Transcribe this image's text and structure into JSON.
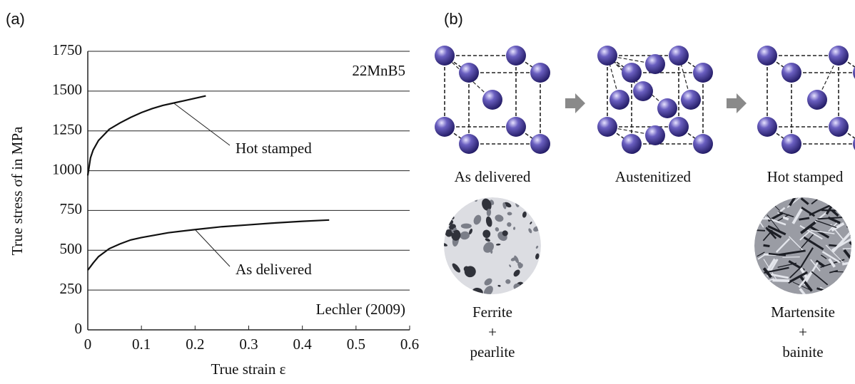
{
  "panels": {
    "a": "(a)",
    "b": "(b)"
  },
  "chart_data": {
    "type": "line",
    "xlabel": "True strain ε",
    "ylabel": "True stress σf in MPa",
    "annotations": [
      "22MnB5",
      "Lechler (2009)"
    ],
    "xlim": [
      0,
      0.6
    ],
    "xticks": [
      0,
      0.1,
      0.2,
      0.3,
      0.4,
      0.5,
      0.6
    ],
    "ylim": [
      0,
      1750
    ],
    "yticks": [
      0,
      250,
      500,
      750,
      1000,
      1250,
      1500,
      1750
    ],
    "grid": true,
    "series": [
      {
        "name": "Hot stamped",
        "color": "#111111",
        "x": [
          0,
          0.005,
          0.01,
          0.02,
          0.04,
          0.06,
          0.08,
          0.1,
          0.12,
          0.14,
          0.16,
          0.18,
          0.2,
          0.22
        ],
        "values": [
          970,
          1080,
          1130,
          1190,
          1260,
          1300,
          1335,
          1365,
          1390,
          1410,
          1425,
          1440,
          1455,
          1470
        ]
      },
      {
        "name": "As delivered",
        "color": "#111111",
        "x": [
          0,
          0.01,
          0.02,
          0.04,
          0.06,
          0.08,
          0.1,
          0.15,
          0.2,
          0.25,
          0.3,
          0.35,
          0.4,
          0.45
        ],
        "values": [
          375,
          420,
          460,
          510,
          540,
          565,
          580,
          610,
          630,
          648,
          660,
          672,
          682,
          690
        ]
      }
    ]
  },
  "diagram": {
    "stages": [
      {
        "label": "As delivered"
      },
      {
        "label": "Austenitized"
      },
      {
        "label": "Hot stamped"
      }
    ],
    "micrographs": [
      {
        "lines": [
          "Ferrite",
          "+",
          "pearlite"
        ]
      },
      {
        "lines": [
          "Martensite",
          "+",
          "bainite"
        ]
      }
    ]
  }
}
